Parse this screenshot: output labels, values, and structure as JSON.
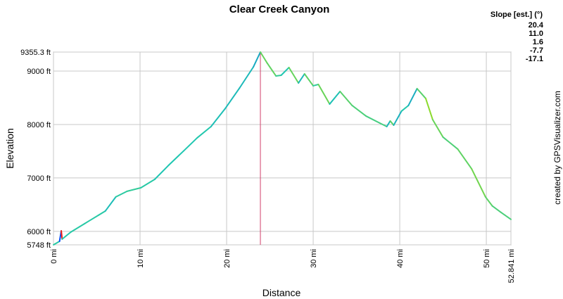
{
  "chart_data": {
    "type": "line",
    "title": "Clear Creek Canyon",
    "x_label": "Distance",
    "y_label": "Elevation",
    "credit": "created by GPSVisualizer.com",
    "x": [
      0,
      0.7,
      0.9,
      1.0,
      2.0,
      3.6,
      5.2,
      6.0,
      7.2,
      8.5,
      10.1,
      11.7,
      13.3,
      15.0,
      16.6,
      18.2,
      19.8,
      21.5,
      23.1,
      23.9,
      24.7,
      25.7,
      26.3,
      27.2,
      28.3,
      29.0,
      30.0,
      30.6,
      31.9,
      33.1,
      34.5,
      36.1,
      37.7,
      38.5,
      38.9,
      39.3,
      40.2,
      41.0,
      42.0,
      43.0,
      43.8,
      45.0,
      46.7,
      48.3,
      49.9,
      50.7,
      51.7,
      52.841
    ],
    "values": [
      5748,
      5814,
      6010,
      5855,
      5987,
      6145,
      6303,
      6382,
      6645,
      6750,
      6816,
      6974,
      7237,
      7500,
      7750,
      7961,
      8290,
      8684,
      9079,
      9355.3,
      9145,
      8908,
      8921,
      9066,
      8776,
      8947,
      8724,
      8750,
      8382,
      8618,
      8355,
      8158,
      8026,
      7961,
      8066,
      7987,
      8250,
      8355,
      8671,
      8487,
      8092,
      7763,
      7539,
      7171,
      6645,
      6474,
      6355,
      6224
    ],
    "xlim": [
      0,
      52.841
    ],
    "ylim": [
      5748,
      9355.3
    ],
    "xticks": [
      {
        "value": 0,
        "label": "0 mi"
      },
      {
        "value": 10,
        "label": "10 mi"
      },
      {
        "value": 20,
        "label": "20 mi"
      },
      {
        "value": 30,
        "label": "30 mi"
      },
      {
        "value": 40,
        "label": "40 mi"
      },
      {
        "value": 50,
        "label": "50 mi"
      },
      {
        "value": 52.841,
        "label": "52.841 mi"
      }
    ],
    "yticks": [
      {
        "value": 5748,
        "label": "5748 ft"
      },
      {
        "value": 6000,
        "label": "6000 ft"
      },
      {
        "value": 7000,
        "label": "7000 ft"
      },
      {
        "value": 8000,
        "label": "8000 ft"
      },
      {
        "value": 9000,
        "label": "9000 ft"
      },
      {
        "value": 9355.3,
        "label": "9355.3 ft"
      }
    ],
    "grid": true,
    "marker_line": {
      "x": 23.9,
      "color": "#d0406a"
    },
    "color_scale": {
      "title": "Slope [est.] (°)",
      "entries": [
        {
          "value": 20.4,
          "color": "#e020e0"
        },
        {
          "value": 11,
          "label": "11.0",
          "color": "#0044ff"
        },
        {
          "value": 1.6,
          "color": "#20c8b0"
        },
        {
          "value": -7.7,
          "color": "#b0e000"
        },
        {
          "value": -17.1,
          "color": "#ff1010"
        }
      ]
    }
  }
}
